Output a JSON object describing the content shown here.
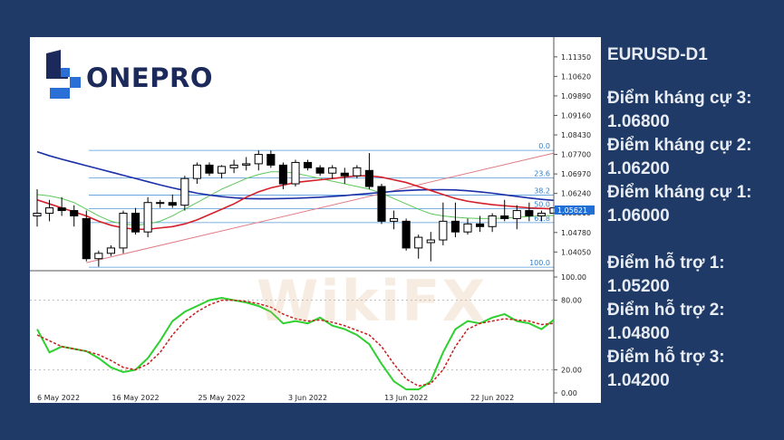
{
  "brand": {
    "name": "ONEPRO",
    "watermark": "WikiFX"
  },
  "side_panel": {
    "symbol": "EURUSD-D1",
    "resistance": [
      {
        "label": "Điểm kháng cự 3:",
        "value": "1.06800"
      },
      {
        "label": "Điểm kháng cự 2:",
        "value": "1.06200"
      },
      {
        "label": "Điểm kháng cự 1:",
        "value": "1.06000"
      }
    ],
    "support": [
      {
        "label": "Điểm hỗ trợ 1:",
        "value": "1.05200"
      },
      {
        "label": "Điểm hỗ trợ 2:",
        "value": "1.04800"
      },
      {
        "label": "Điểm hỗ trợ 3:",
        "value": "1.04200"
      }
    ]
  },
  "colors": {
    "background": "#1f3a66",
    "ma_fast": "#d4202a",
    "ma_slow": "#1a2fa8",
    "ma_green": "#5cc85a",
    "stoch_k": "#2ed02e",
    "stoch_d": "#c81e1e",
    "fib": "#2a7fd0",
    "trendline": "#e07c84"
  },
  "chart_data": [
    {
      "type": "candlestick",
      "title": "",
      "price_axis": {
        "ticks": [
          "1.11350",
          "1.10620",
          "1.09890",
          "1.09160",
          "1.08430",
          "1.07700",
          "1.06970",
          "1.06240",
          "1.05510",
          "1.04780",
          "1.04050"
        ],
        "range": [
          1.0335,
          1.1175
        ]
      },
      "current_price": "1.05621",
      "date_labels": [
        "6 May 2022",
        "16 May 2022",
        "25 May 2022",
        "3 Jun 2022",
        "13 Jun 2022",
        "22 Jun 2022"
      ],
      "date_label_index": [
        0,
        8,
        15,
        22,
        30,
        37
      ],
      "fibonacci": {
        "high": 1.0785,
        "low": 1.0348,
        "levels": [
          {
            "label": "0.0",
            "ratio": 0.0
          },
          {
            "label": "23.6",
            "ratio": 0.236
          },
          {
            "label": "38.2",
            "ratio": 0.382
          },
          {
            "label": "50.0",
            "ratio": 0.5
          },
          {
            "label": "61.8",
            "ratio": 0.618
          },
          {
            "label": "100.0",
            "ratio": 1.0
          }
        ]
      },
      "candles": [
        {
          "o": 1.054,
          "h": 1.064,
          "l": 1.05,
          "c": 1.055
        },
        {
          "o": 1.055,
          "h": 1.06,
          "l": 1.052,
          "c": 1.057
        },
        {
          "o": 1.057,
          "h": 1.061,
          "l": 1.054,
          "c": 1.056
        },
        {
          "o": 1.056,
          "h": 1.058,
          "l": 1.05,
          "c": 1.054
        },
        {
          "o": 1.053,
          "h": 1.056,
          "l": 1.037,
          "c": 1.038
        },
        {
          "o": 1.038,
          "h": 1.041,
          "l": 1.035,
          "c": 1.04
        },
        {
          "o": 1.04,
          "h": 1.043,
          "l": 1.039,
          "c": 1.042
        },
        {
          "o": 1.042,
          "h": 1.056,
          "l": 1.04,
          "c": 1.055
        },
        {
          "o": 1.055,
          "h": 1.057,
          "l": 1.047,
          "c": 1.048
        },
        {
          "o": 1.048,
          "h": 1.061,
          "l": 1.046,
          "c": 1.059
        },
        {
          "o": 1.059,
          "h": 1.06,
          "l": 1.057,
          "c": 1.059
        },
        {
          "o": 1.059,
          "h": 1.062,
          "l": 1.057,
          "c": 1.058
        },
        {
          "o": 1.058,
          "h": 1.069,
          "l": 1.056,
          "c": 1.068
        },
        {
          "o": 1.068,
          "h": 1.074,
          "l": 1.066,
          "c": 1.073
        },
        {
          "o": 1.073,
          "h": 1.074,
          "l": 1.069,
          "c": 1.07
        },
        {
          "o": 1.07,
          "h": 1.073,
          "l": 1.068,
          "c": 1.0725
        },
        {
          "o": 1.072,
          "h": 1.075,
          "l": 1.07,
          "c": 1.073
        },
        {
          "o": 1.073,
          "h": 1.076,
          "l": 1.071,
          "c": 1.0735
        },
        {
          "o": 1.0735,
          "h": 1.0785,
          "l": 1.071,
          "c": 1.077
        },
        {
          "o": 1.077,
          "h": 1.0785,
          "l": 1.072,
          "c": 1.073
        },
        {
          "o": 1.073,
          "h": 1.074,
          "l": 1.064,
          "c": 1.066
        },
        {
          "o": 1.066,
          "h": 1.075,
          "l": 1.065,
          "c": 1.074
        },
        {
          "o": 1.074,
          "h": 1.075,
          "l": 1.071,
          "c": 1.072
        },
        {
          "o": 1.072,
          "h": 1.073,
          "l": 1.069,
          "c": 1.07
        },
        {
          "o": 1.07,
          "h": 1.073,
          "l": 1.068,
          "c": 1.072
        },
        {
          "o": 1.07,
          "h": 1.072,
          "l": 1.066,
          "c": 1.069
        },
        {
          "o": 1.069,
          "h": 1.073,
          "l": 1.068,
          "c": 1.072
        },
        {
          "o": 1.071,
          "h": 1.0775,
          "l": 1.064,
          "c": 1.065
        },
        {
          "o": 1.065,
          "h": 1.066,
          "l": 1.051,
          "c": 1.052
        },
        {
          "o": 1.052,
          "h": 1.056,
          "l": 1.049,
          "c": 1.053
        },
        {
          "o": 1.052,
          "h": 1.053,
          "l": 1.041,
          "c": 1.042
        },
        {
          "o": 1.042,
          "h": 1.047,
          "l": 1.038,
          "c": 1.046
        },
        {
          "o": 1.044,
          "h": 1.048,
          "l": 1.037,
          "c": 1.045
        },
        {
          "o": 1.045,
          "h": 1.059,
          "l": 1.043,
          "c": 1.052
        },
        {
          "o": 1.052,
          "h": 1.059,
          "l": 1.046,
          "c": 1.048
        },
        {
          "o": 1.048,
          "h": 1.053,
          "l": 1.047,
          "c": 1.051
        },
        {
          "o": 1.051,
          "h": 1.054,
          "l": 1.048,
          "c": 1.05
        },
        {
          "o": 1.05,
          "h": 1.055,
          "l": 1.048,
          "c": 1.054
        },
        {
          "o": 1.054,
          "h": 1.06,
          "l": 1.052,
          "c": 1.053
        },
        {
          "o": 1.053,
          "h": 1.058,
          "l": 1.049,
          "c": 1.056
        },
        {
          "o": 1.056,
          "h": 1.059,
          "l": 1.052,
          "c": 1.054
        },
        {
          "o": 1.054,
          "h": 1.056,
          "l": 1.052,
          "c": 1.055
        },
        {
          "o": 1.055,
          "h": 1.058,
          "l": 1.053,
          "c": 1.057
        }
      ],
      "ma_fast": [
        1.06,
        1.0585,
        1.057,
        1.0555,
        1.054,
        1.052,
        1.0505,
        1.0495,
        1.049,
        1.049,
        1.0495,
        1.05,
        1.051,
        1.0525,
        1.0545,
        1.0565,
        1.0585,
        1.061,
        1.063,
        1.0645,
        1.0655,
        1.0665,
        1.067,
        1.0675,
        1.068,
        1.0685,
        1.069,
        1.069,
        1.0685,
        1.0675,
        1.0665,
        1.065,
        1.0635,
        1.062,
        1.0605,
        1.0595,
        1.0588,
        1.0582,
        1.0578,
        1.0574,
        1.057,
        1.0568,
        1.0566
      ],
      "ma_slow": [
        1.078,
        1.0765,
        1.0752,
        1.074,
        1.0728,
        1.0716,
        1.0704,
        1.0692,
        1.068,
        1.0668,
        1.0656,
        1.0645,
        1.0635,
        1.0625,
        1.0618,
        1.0612,
        1.0608,
        1.0605,
        1.0604,
        1.0604,
        1.0605,
        1.0606,
        1.0608,
        1.061,
        1.0613,
        1.0616,
        1.062,
        1.0624,
        1.0628,
        1.0632,
        1.0635,
        1.0637,
        1.0638,
        1.0638,
        1.0637,
        1.0634,
        1.063,
        1.0625,
        1.0619,
        1.0613,
        1.0607,
        1.0602,
        1.0598
      ],
      "ma_green": [
        1.062,
        1.0615,
        1.0605,
        1.059,
        1.0565,
        1.054,
        1.052,
        1.051,
        1.0505,
        1.051,
        1.052,
        1.054,
        1.0565,
        1.059,
        1.0615,
        1.064,
        1.066,
        1.068,
        1.0695,
        1.0705,
        1.0705,
        1.07,
        1.069,
        1.068,
        1.067,
        1.066,
        1.065,
        1.064,
        1.0625,
        1.0605,
        1.0585,
        1.0565,
        1.0548,
        1.054,
        1.0535,
        1.0532,
        1.053,
        1.053,
        1.0532,
        1.0535,
        1.0538,
        1.054,
        1.0542
      ],
      "trendline": {
        "from": {
          "i": 4,
          "p": 1.0365
        },
        "to": {
          "i": 42,
          "p": 1.0775
        }
      }
    },
    {
      "type": "line",
      "title": "",
      "y_ticks": [
        "100.00",
        "80.00",
        "20.00",
        "0.00"
      ],
      "ylim": [
        0,
        100
      ],
      "series": [
        {
          "values": [
            55,
            35,
            40,
            38,
            36,
            30,
            22,
            18,
            20,
            30,
            45,
            62,
            70,
            75,
            80,
            82,
            80,
            78,
            75,
            70,
            60,
            62,
            60,
            65,
            58,
            55,
            50,
            42,
            25,
            10,
            3,
            3,
            10,
            35,
            55,
            62,
            60,
            65,
            68,
            62,
            60,
            55,
            63
          ]
        },
        {
          "values": [
            50,
            45,
            40,
            38,
            36,
            33,
            28,
            22,
            20,
            25,
            35,
            50,
            62,
            70,
            76,
            80,
            80,
            79,
            77,
            74,
            68,
            64,
            62,
            63,
            61,
            58,
            54,
            50,
            40,
            25,
            12,
            6,
            8,
            20,
            40,
            55,
            60,
            62,
            64,
            63,
            62,
            59,
            60
          ]
        }
      ]
    }
  ]
}
